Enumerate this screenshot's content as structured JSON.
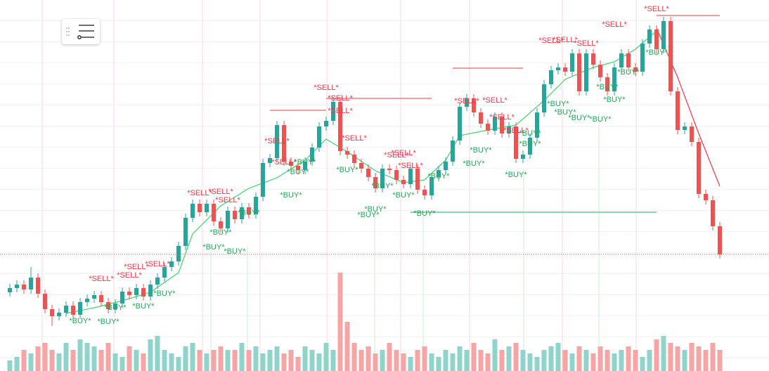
{
  "chart_data": {
    "type": "candlestick",
    "ylim": [
      0,
      528
    ],
    "colors": {
      "up": "#26a69a",
      "down": "#ef5350",
      "volume_up": "#8fd4ca",
      "volume_down": "#f9a4a4"
    },
    "open": [
      112,
      118,
      123,
      116,
      133,
      110,
      88,
      78,
      83,
      93,
      80,
      98,
      103,
      108,
      98,
      88,
      96,
      113,
      108,
      118,
      106,
      123,
      133,
      148,
      156,
      178,
      218,
      238,
      226,
      238,
      213,
      203,
      228,
      216,
      233,
      223,
      248,
      296,
      303,
      350,
      298,
      292,
      286,
      298,
      318,
      348,
      356,
      383,
      313,
      308,
      296,
      288,
      276,
      260,
      288,
      286,
      272,
      266,
      288,
      258,
      250,
      276,
      286,
      298,
      328,
      376,
      388,
      368,
      352,
      342,
      362,
      338,
      348,
      302,
      308,
      332,
      368,
      408,
      428,
      432,
      426,
      452,
      398,
      452,
      436,
      418,
      398,
      432,
      452,
      432,
      426,
      466,
      486,
      458,
      498,
      398,
      343,
      348,
      326,
      252,
      243,
      206
    ],
    "high": [
      124,
      129,
      129,
      148,
      139,
      116,
      94,
      89,
      99,
      99,
      104,
      109,
      114,
      114,
      104,
      102,
      119,
      119,
      124,
      124,
      129,
      139,
      154,
      162,
      184,
      224,
      244,
      244,
      244,
      244,
      219,
      234,
      234,
      239,
      239,
      254,
      302,
      309,
      356,
      356,
      304,
      298,
      304,
      324,
      354,
      362,
      389,
      389,
      319,
      314,
      302,
      294,
      282,
      294,
      294,
      292,
      278,
      294,
      294,
      264,
      282,
      292,
      304,
      334,
      382,
      394,
      394,
      374,
      358,
      368,
      368,
      354,
      354,
      314,
      338,
      374,
      414,
      434,
      438,
      438,
      458,
      458,
      458,
      458,
      442,
      424,
      438,
      458,
      458,
      438,
      472,
      492,
      492,
      504,
      504,
      404,
      354,
      354,
      332,
      258,
      249,
      212
    ],
    "low": [
      106,
      112,
      110,
      110,
      104,
      82,
      64,
      72,
      77,
      74,
      74,
      92,
      97,
      92,
      82,
      82,
      90,
      102,
      102,
      100,
      100,
      117,
      127,
      142,
      150,
      172,
      212,
      220,
      220,
      207,
      197,
      197,
      210,
      210,
      217,
      217,
      242,
      290,
      297,
      292,
      286,
      280,
      280,
      292,
      312,
      342,
      350,
      307,
      302,
      290,
      282,
      270,
      254,
      254,
      280,
      266,
      260,
      260,
      252,
      244,
      244,
      270,
      280,
      292,
      322,
      370,
      362,
      346,
      336,
      336,
      332,
      332,
      296,
      296,
      302,
      326,
      362,
      402,
      422,
      420,
      420,
      392,
      392,
      430,
      412,
      392,
      392,
      426,
      426,
      420,
      420,
      460,
      452,
      452,
      392,
      337,
      337,
      320,
      246,
      237,
      200,
      160
    ],
    "close": [
      118,
      123,
      116,
      133,
      110,
      88,
      78,
      83,
      93,
      80,
      98,
      103,
      108,
      98,
      88,
      96,
      113,
      108,
      118,
      106,
      123,
      133,
      148,
      156,
      178,
      218,
      238,
      226,
      238,
      213,
      203,
      228,
      216,
      233,
      223,
      248,
      296,
      303,
      350,
      298,
      292,
      286,
      298,
      318,
      348,
      356,
      383,
      313,
      308,
      296,
      288,
      276,
      260,
      288,
      286,
      272,
      266,
      288,
      258,
      250,
      276,
      286,
      298,
      328,
      376,
      388,
      368,
      352,
      342,
      362,
      338,
      348,
      302,
      308,
      332,
      368,
      408,
      428,
      432,
      426,
      452,
      398,
      452,
      436,
      418,
      398,
      432,
      452,
      432,
      426,
      466,
      486,
      458,
      498,
      398,
      343,
      348,
      326,
      252,
      243,
      206,
      166
    ],
    "volume": [
      15,
      20,
      30,
      25,
      35,
      40,
      30,
      25,
      40,
      30,
      45,
      40,
      35,
      30,
      40,
      25,
      20,
      35,
      30,
      25,
      45,
      50,
      30,
      25,
      20,
      35,
      40,
      30,
      25,
      30,
      35,
      30,
      30,
      40,
      30,
      35,
      25,
      30,
      35,
      25,
      30,
      20,
      35,
      30,
      25,
      40,
      30,
      140,
      70,
      40,
      30,
      35,
      25,
      30,
      40,
      30,
      25,
      20,
      30,
      35,
      25,
      20,
      30,
      25,
      35,
      30,
      40,
      30,
      25,
      45,
      30,
      35,
      40,
      30,
      25,
      20,
      30,
      35,
      40,
      30,
      25,
      35,
      30,
      25,
      35,
      30,
      25,
      30,
      35,
      30,
      20,
      30,
      45,
      50,
      40,
      35,
      30,
      40,
      35,
      30,
      40,
      30
    ],
    "lines": [
      {
        "color": "#3dd66a",
        "x": [
          8,
          12,
          16,
          20,
          24,
          26,
          30,
          34,
          38,
          42,
          45,
          48,
          52,
          56,
          59,
          62,
          64,
          68,
          72,
          76,
          79,
          83,
          86,
          89,
          92
        ],
        "values": [
          82,
          90,
          100,
          112,
          140,
          195,
          235,
          260,
          275,
          300,
          330,
          312,
          285,
          268,
          272,
          300,
          335,
          343,
          350,
          385,
          415,
          432,
          440,
          458,
          484
        ]
      },
      {
        "color": "#f23645",
        "x": [
          92,
          95,
          98,
          101
        ],
        "values": [
          488,
          418,
          338,
          263
        ]
      }
    ],
    "levels": [
      {
        "color": "#f23645",
        "x": [
          37,
          45
        ],
        "y": 371
      },
      {
        "color": "#f23645",
        "x": [
          45,
          60
        ],
        "y": 388
      },
      {
        "color": "#f23645",
        "x": [
          63,
          73
        ],
        "y": 431
      },
      {
        "color": "#f23645",
        "x": [
          92,
          101
        ],
        "y": 506
      },
      {
        "color": "#22ab55",
        "x": [
          57,
          92
        ],
        "y": 226
      }
    ],
    "signals": [
      {
        "label": "*SELL*",
        "color": "#f23645",
        "x": [
          13,
          17,
          18,
          21,
          27,
          30,
          31,
          38,
          39,
          45,
          47,
          47,
          49,
          55,
          56,
          57,
          65,
          69,
          70,
          72,
          77,
          79,
          82,
          86,
          92
        ],
        "y": [
          131,
          136,
          148,
          152,
          253,
          255,
          243,
          327,
          297,
          403,
          388,
          370,
          331,
          307,
          310,
          292,
          384,
          385,
          361,
          342,
          470,
          471,
          466,
          493,
          515
        ]
      },
      {
        "label": "*BUY*",
        "color": "#22ab55",
        "x": [
          10,
          14,
          15,
          19,
          22,
          29,
          30,
          32,
          34,
          40,
          41,
          42,
          48,
          51,
          52,
          53,
          56,
          59,
          61,
          66,
          67,
          72,
          74,
          74,
          78,
          79,
          81,
          84,
          85,
          86,
          88,
          92
        ],
        "y": [
          71,
          70,
          90,
          92,
          110,
          176,
          197,
          170,
          225,
          250,
          283,
          297,
          286,
          222,
          230,
          263,
          250,
          224,
          277,
          295,
          314,
          279,
          323,
          338,
          380,
          368,
          360,
          358,
          404,
          386,
          425,
          453
        ]
      }
    ]
  }
}
